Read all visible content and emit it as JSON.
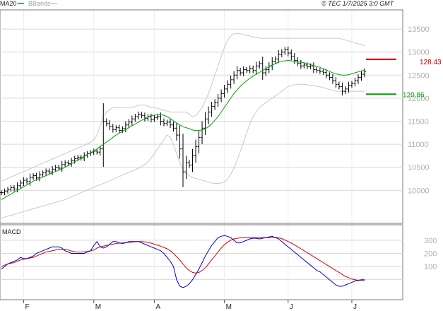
{
  "header": {
    "legend": [
      {
        "label": "MA20",
        "color": "#00a000"
      },
      {
        "label": "BBands",
        "color": "#c0c0c0"
      }
    ],
    "copyright": "© TEC 1/7/2025 3:0 GMT"
  },
  "chart_data": [
    {
      "type": "ohlc",
      "y_ticks": [
        "13500",
        "13000",
        "12500",
        "12000",
        "11500",
        "11000",
        "10500",
        "10000"
      ],
      "ylim": [
        9300,
        13900
      ],
      "x_ticks": [
        "F",
        "M",
        "A",
        "M",
        "J",
        "J"
      ],
      "grid": true,
      "close": [
        9950,
        9985,
        10020,
        10060,
        10030,
        10100,
        10160,
        10220,
        10190,
        10280,
        10320,
        10270,
        10340,
        10380,
        10420,
        10400,
        10460,
        10500,
        10480,
        10560,
        10600,
        10580,
        10640,
        10690,
        10720,
        10700,
        10760,
        10800,
        10820,
        10850,
        10830,
        10900,
        11500,
        11450,
        11380,
        11320,
        11360,
        11300,
        11340,
        11420,
        11480,
        11550,
        11600,
        11650,
        11620,
        11560,
        11600,
        11540,
        11580,
        11600,
        11500,
        11450,
        11480,
        11420,
        11350,
        11200,
        10900,
        10400,
        10600,
        10550,
        10750,
        10950,
        11150,
        11350,
        11550,
        11700,
        11820,
        11900,
        12000,
        12100,
        12200,
        12300,
        12400,
        12500,
        12600,
        12550,
        12620,
        12600,
        12650,
        12600,
        12700,
        12750,
        12550,
        12620,
        12700,
        12800,
        12850,
        12950,
        13000,
        13050,
        12980,
        12900,
        12820,
        12760,
        12700,
        12720,
        12680,
        12700,
        12620,
        12600,
        12580,
        12560,
        12500,
        12450,
        12380,
        12300,
        12250,
        12150,
        12200,
        12280,
        12320,
        12380,
        12450,
        12520,
        12580
      ],
      "ma20": [
        9800,
        9840,
        9880,
        9920,
        9960,
        10000,
        10040,
        10080,
        10120,
        10160,
        10200,
        10230,
        10260,
        10290,
        10320,
        10350,
        10380,
        10410,
        10440,
        10470,
        10500,
        10540,
        10580,
        10620,
        10660,
        10700,
        10740,
        10780,
        10820,
        10860,
        10900,
        10950,
        11000,
        11050,
        11100,
        11150,
        11200,
        11240,
        11280,
        11320,
        11360,
        11400,
        11440,
        11480,
        11520,
        11560,
        11600,
        11620,
        11630,
        11640,
        11640,
        11630,
        11600,
        11560,
        11510,
        11460,
        11420,
        11380,
        11360,
        11340,
        11310,
        11300,
        11300,
        11310,
        11340,
        11380,
        11440,
        11520,
        11600,
        11700,
        11800,
        11900,
        12000,
        12100,
        12180,
        12260,
        12320,
        12380,
        12430,
        12480,
        12520,
        12560,
        12600,
        12640,
        12680,
        12720,
        12750,
        12780,
        12800,
        12810,
        12820,
        12810,
        12800,
        12790,
        12780,
        12770,
        12750,
        12730,
        12710,
        12690,
        12670,
        12640,
        12610,
        12580,
        12550,
        12530,
        12510,
        12500,
        12500,
        12510,
        12530,
        12550,
        12570,
        12590,
        12610
      ],
      "bb_upper": [
        10200,
        10230,
        10260,
        10290,
        10320,
        10350,
        10380,
        10410,
        10440,
        10470,
        10500,
        10530,
        10560,
        10590,
        10620,
        10650,
        10680,
        10710,
        10740,
        10770,
        10800,
        10830,
        10860,
        10890,
        10920,
        10950,
        10980,
        11010,
        11040,
        11100,
        11200,
        11400,
        11600,
        11700,
        11750,
        11800,
        11800,
        11800,
        11800,
        11800,
        11800,
        11800,
        11820,
        11850,
        11850,
        11850,
        11830,
        11800,
        11800,
        11780,
        11760,
        11740,
        11720,
        11700,
        11700,
        11700,
        11700,
        11700,
        11700,
        11650,
        11600,
        11620,
        11700,
        11800,
        11950,
        12100,
        12300,
        12500,
        12700,
        12900,
        13100,
        13250,
        13350,
        13400,
        13400,
        13400,
        13380,
        13360,
        13350,
        13330,
        13320,
        13300,
        13300,
        13300,
        13300,
        13300,
        13300,
        13300,
        13300,
        13300,
        13300,
        13300,
        13300,
        13300,
        13300,
        13300,
        13300,
        13300,
        13300,
        13300,
        13300,
        13300,
        13300,
        13300,
        13300,
        13300,
        13300,
        13280,
        13260,
        13240,
        13220,
        13200,
        13180,
        13160,
        13140
      ],
      "bb_lower": [
        9400,
        9420,
        9440,
        9460,
        9480,
        9500,
        9520,
        9540,
        9560,
        9580,
        9600,
        9620,
        9640,
        9660,
        9680,
        9700,
        9720,
        9740,
        9760,
        9780,
        9800,
        9830,
        9860,
        9890,
        9920,
        9950,
        9980,
        10010,
        10040,
        10070,
        10100,
        10120,
        10150,
        10180,
        10210,
        10240,
        10270,
        10300,
        10330,
        10360,
        10390,
        10420,
        10450,
        10480,
        10520,
        10560,
        10620,
        10700,
        10800,
        10900,
        11000,
        11100,
        11200,
        11150,
        11000,
        10800,
        10600,
        10450,
        10380,
        10320,
        10280,
        10260,
        10240,
        10220,
        10200,
        10180,
        10160,
        10150,
        10150,
        10160,
        10180,
        10250,
        10350,
        10480,
        10650,
        10850,
        11050,
        11250,
        11450,
        11600,
        11700,
        11800,
        11850,
        11900,
        11950,
        12000,
        12050,
        12100,
        12150,
        12200,
        12250,
        12280,
        12290,
        12300,
        12300,
        12300,
        12290,
        12280,
        12270,
        12260,
        12250,
        12230,
        12210,
        12190,
        12170,
        12150,
        12150,
        12150,
        12150,
        12150,
        12150,
        12150,
        12150,
        12150,
        12150
      ]
    },
    {
      "type": "line",
      "name": "MACD",
      "y_ticks": [
        "300",
        "200",
        "100"
      ],
      "ylim": [
        -120,
        380
      ],
      "macd": [
        80,
        100,
        120,
        130,
        140,
        150,
        170,
        160,
        160,
        170,
        180,
        200,
        210,
        220,
        230,
        240,
        250,
        250,
        250,
        240,
        220,
        210,
        200,
        200,
        200,
        200,
        200,
        210,
        220,
        260,
        290,
        250,
        240,
        250,
        270,
        290,
        290,
        280,
        275,
        280,
        290,
        290,
        290,
        290,
        280,
        270,
        260,
        250,
        240,
        230,
        220,
        200,
        170,
        140,
        100,
        0,
        -50,
        -60,
        -50,
        -30,
        0,
        40,
        80,
        130,
        180,
        220,
        260,
        290,
        320,
        330,
        335,
        330,
        320,
        300,
        280,
        280,
        290,
        300,
        310,
        315,
        315,
        310,
        315,
        320,
        325,
        330,
        320,
        310,
        290,
        270,
        250,
        230,
        210,
        190,
        170,
        150,
        130,
        110,
        90,
        70,
        60,
        40,
        20,
        0,
        -20,
        -40,
        -50,
        -50,
        -40,
        -30,
        -20,
        -10,
        -5,
        0,
        0
      ],
      "signal": [
        100,
        110,
        120,
        125,
        130,
        140,
        150,
        155,
        160,
        165,
        170,
        180,
        190,
        200,
        210,
        215,
        220,
        225,
        230,
        232,
        230,
        225,
        218,
        212,
        210,
        210,
        212,
        215,
        220,
        225,
        240,
        250,
        255,
        260,
        265,
        270,
        275,
        278,
        280,
        282,
        284,
        286,
        288,
        290,
        290,
        288,
        284,
        278,
        270,
        262,
        255,
        245,
        235,
        220,
        200,
        175,
        150,
        120,
        90,
        70,
        55,
        50,
        55,
        70,
        90,
        120,
        150,
        180,
        210,
        240,
        265,
        285,
        300,
        310,
        315,
        318,
        318,
        318,
        318,
        320,
        320,
        320,
        320,
        320,
        320,
        322,
        322,
        318,
        312,
        302,
        290,
        278,
        265,
        250,
        235,
        220,
        205,
        190,
        175,
        160,
        145,
        130,
        115,
        100,
        85,
        70,
        55,
        40,
        25,
        15,
        5,
        0,
        -5,
        -5,
        -5
      ]
    }
  ],
  "price_tags": [
    {
      "label": "128.43",
      "value": 12843,
      "color": "#cc0000"
    },
    {
      "label": "120.86",
      "value": 12086,
      "color": "#00a000"
    }
  ]
}
